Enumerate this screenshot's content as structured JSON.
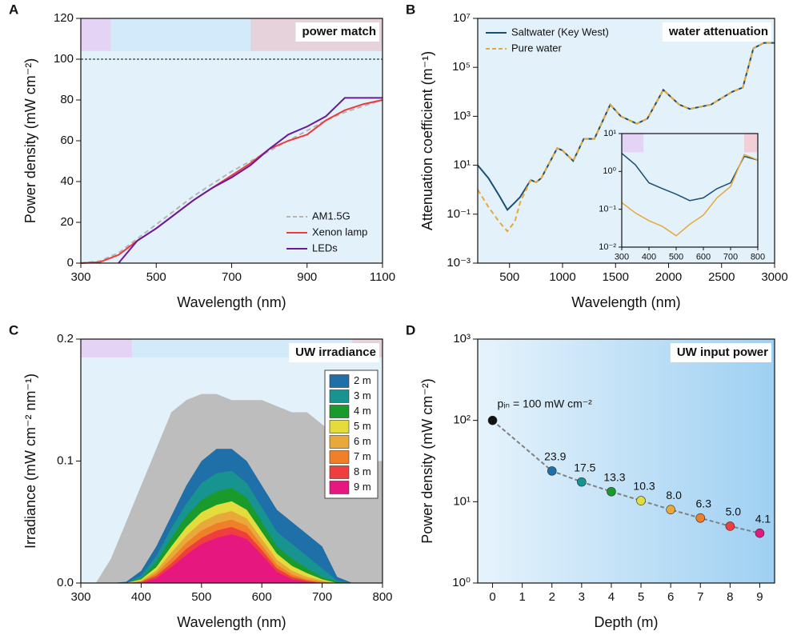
{
  "chart_data": [
    {
      "type": "line",
      "panel": "A",
      "title": "power match",
      "xlabel": "Wavelength (nm)",
      "ylabel": "Power density (mW cm⁻²)",
      "xlim": [
        300,
        1100
      ],
      "xticks": [
        300,
        500,
        700,
        900,
        1100
      ],
      "ylim": [
        0,
        120
      ],
      "yticks": [
        0,
        20,
        40,
        60,
        80,
        100,
        120
      ],
      "background": "#e3f1fb",
      "ref_line": 100,
      "legend": "lower right",
      "regions": [
        {
          "from": 300,
          "to": 380,
          "y": [
            104,
            120
          ],
          "color": "#e4d3f4"
        },
        {
          "from": 380,
          "to": 750,
          "y": [
            104,
            120
          ],
          "color": "#d3eafa"
        },
        {
          "from": 750,
          "to": 1100,
          "y": [
            104,
            120
          ],
          "color": "#e6d2da"
        }
      ],
      "x": [
        300,
        350,
        400,
        450,
        500,
        550,
        600,
        650,
        700,
        750,
        800,
        850,
        900,
        950,
        1000,
        1050,
        1100
      ],
      "series": [
        {
          "name": "AM1.5G",
          "color": "#b5b5b5",
          "dashed": true,
          "values": [
            0,
            1,
            5,
            12,
            19,
            26,
            33,
            39,
            45,
            50,
            55,
            60,
            65,
            70,
            74,
            77,
            80
          ]
        },
        {
          "name": "Xenon lamp",
          "color": "#ec3b3b",
          "values": [
            0,
            0.5,
            4,
            11,
            17,
            24,
            31,
            37,
            43,
            49,
            56,
            60,
            63,
            70,
            75,
            78,
            80
          ]
        },
        {
          "name": "LEDs",
          "color": "#6a1b9a",
          "values": [
            null,
            null,
            0,
            11,
            17,
            24,
            31,
            37,
            42,
            48,
            56,
            63,
            67,
            72,
            81,
            81,
            81
          ]
        }
      ]
    },
    {
      "type": "line",
      "panel": "B",
      "title": "water attenuation",
      "xlabel": "Wavelength (nm)",
      "ylabel": "Attenuation coefficient (m⁻¹)",
      "xlim": [
        200,
        3000
      ],
      "xticks": [
        500,
        1000,
        1500,
        2000,
        2500,
        3000
      ],
      "ylog": true,
      "ylim": [
        0.001,
        10000000
      ],
      "yticks": [
        {
          "value": 0.001,
          "label": "10⁻³"
        },
        {
          "value": 0.1,
          "label": "10⁻¹"
        },
        {
          "value": 10,
          "label": "10¹"
        },
        {
          "value": 1000,
          "label": "10³"
        },
        {
          "value": 100000,
          "label": "10⁵"
        },
        {
          "value": 10000000,
          "label": "10⁷"
        }
      ],
      "background": "#e3f1fb",
      "legend": "upper left",
      "x": [
        200,
        300,
        400,
        480,
        550,
        600,
        700,
        750,
        800,
        950,
        1000,
        1100,
        1200,
        1300,
        1450,
        1550,
        1700,
        1800,
        1950,
        2100,
        2200,
        2400,
        2600,
        2700,
        2800,
        2900,
        3000
      ],
      "series": [
        {
          "name": "Saltwater (Key West)",
          "color": "#1b4f72",
          "values": [
            10,
            3,
            0.6,
            0.15,
            0.3,
            0.5,
            2.5,
            2,
            3,
            50,
            40,
            15,
            120,
            120,
            3000,
            1000,
            500,
            800,
            12000,
            3000,
            2000,
            3000,
            10000,
            15000,
            600000,
            1000000,
            1000000
          ]
        },
        {
          "name": "Pure water",
          "color": "#e8a838",
          "dashed": true,
          "values": [
            1,
            0.2,
            0.05,
            0.02,
            0.05,
            0.3,
            2.5,
            2,
            3,
            50,
            40,
            15,
            120,
            120,
            3000,
            1000,
            500,
            800,
            12000,
            3000,
            2000,
            3000,
            10000,
            15000,
            600000,
            1000000,
            1000000
          ]
        }
      ],
      "inset": {
        "type": "line",
        "xlim": [
          300,
          800
        ],
        "xticks": [
          300,
          400,
          500,
          600,
          700,
          800
        ],
        "ylog": true,
        "ylim": [
          0.01,
          10
        ],
        "yticks": [
          {
            "value": 0.01,
            "label": "10⁻²"
          },
          {
            "value": 0.1,
            "label": "10⁻¹"
          },
          {
            "value": 1,
            "label": "10⁰"
          },
          {
            "value": 10,
            "label": "10¹"
          }
        ],
        "background": "#e3f1fb",
        "regions": [
          {
            "from": 300,
            "to": 380,
            "y": [
              3.2,
              10
            ],
            "color": "#e4d3f4"
          },
          {
            "from": 750,
            "to": 800,
            "y": [
              3.2,
              10
            ],
            "color": "#f2cfd6"
          }
        ],
        "x": [
          300,
          350,
          400,
          450,
          500,
          550,
          600,
          650,
          700,
          750,
          800
        ],
        "series": [
          {
            "color": "#1b4f72",
            "values": [
              3,
              1.5,
              0.5,
              0.35,
              0.25,
              0.17,
              0.2,
              0.35,
              0.5,
              2.5,
              2
            ]
          },
          {
            "color": "#e8a838",
            "values": [
              0.15,
              0.08,
              0.05,
              0.035,
              0.02,
              0.04,
              0.07,
              0.2,
              0.4,
              2.8,
              2
            ]
          }
        ]
      }
    },
    {
      "type": "area",
      "panel": "C",
      "title": "UW irradiance",
      "xlabel": "Wavelength (nm)",
      "ylabel": "Irradiance (mW cm⁻² nm⁻¹)",
      "xlim": [
        300,
        800
      ],
      "xticks": [
        300,
        400,
        500,
        600,
        700,
        800
      ],
      "ylim": [
        0,
        0.2
      ],
      "yticks": [
        {
          "value": 0,
          "label": "0.0"
        },
        0.1,
        0.2
      ],
      "background": "#e3f1fb",
      "legend": "upper right",
      "regions": [
        {
          "from": 300,
          "to": 385,
          "y": [
            0.185,
            0.2
          ],
          "color": "#e4d3f4"
        },
        {
          "from": 385,
          "to": 750,
          "y": [
            0.185,
            0.2
          ],
          "color": "#d3eafa"
        },
        {
          "from": 750,
          "to": 800,
          "y": [
            0.185,
            0.2
          ],
          "color": "#e6d2da"
        }
      ],
      "x": [
        300,
        325,
        350,
        375,
        400,
        425,
        450,
        475,
        500,
        525,
        550,
        575,
        600,
        625,
        650,
        675,
        700,
        725,
        750,
        775,
        800
      ],
      "series": [
        {
          "color": "#bdbdbd",
          "values": [
            0,
            0,
            0.02,
            0.05,
            0.08,
            0.11,
            0.14,
            0.15,
            0.155,
            0.155,
            0.15,
            0.15,
            0.15,
            0.145,
            0.14,
            0.14,
            0.13,
            0.12,
            0.12,
            0.1,
            0.1
          ]
        },
        {
          "name": "2 m",
          "color": "#1f6fa8",
          "values": [
            0,
            0,
            0,
            0.001,
            0.01,
            0.03,
            0.055,
            0.08,
            0.1,
            0.11,
            0.11,
            0.1,
            0.08,
            0.06,
            0.05,
            0.04,
            0.03,
            0.005,
            0,
            0,
            0
          ]
        },
        {
          "name": "3 m",
          "color": "#17948f",
          "values": [
            0,
            0,
            0,
            0,
            0.006,
            0.022,
            0.045,
            0.065,
            0.082,
            0.09,
            0.092,
            0.082,
            0.062,
            0.042,
            0.032,
            0.022,
            0.012,
            0.002,
            0,
            0,
            0
          ]
        },
        {
          "name": "4 m",
          "color": "#1a9a2a",
          "values": [
            0,
            0,
            0,
            0,
            0.004,
            0.017,
            0.037,
            0.055,
            0.068,
            0.075,
            0.078,
            0.07,
            0.05,
            0.03,
            0.02,
            0.012,
            0.005,
            0.001,
            0,
            0,
            0
          ]
        },
        {
          "name": "5 m",
          "color": "#e4dc3c",
          "values": [
            0,
            0,
            0,
            0,
            0.003,
            0.013,
            0.03,
            0.046,
            0.058,
            0.064,
            0.067,
            0.06,
            0.042,
            0.024,
            0.014,
            0.008,
            0.003,
            0,
            0,
            0,
            0
          ]
        },
        {
          "name": "6 m",
          "color": "#e9a83a",
          "values": [
            0,
            0,
            0,
            0,
            0.002,
            0.01,
            0.025,
            0.039,
            0.05,
            0.056,
            0.059,
            0.053,
            0.036,
            0.019,
            0.01,
            0.005,
            0.002,
            0,
            0,
            0,
            0
          ]
        },
        {
          "name": "7 m",
          "color": "#f07f2a",
          "values": [
            0,
            0,
            0,
            0,
            0.001,
            0.008,
            0.02,
            0.033,
            0.043,
            0.049,
            0.052,
            0.047,
            0.031,
            0.015,
            0.007,
            0.003,
            0.001,
            0,
            0,
            0,
            0
          ]
        },
        {
          "name": "8 m",
          "color": "#ef3e3e",
          "values": [
            0,
            0,
            0,
            0,
            0.001,
            0.006,
            0.016,
            0.028,
            0.037,
            0.043,
            0.046,
            0.041,
            0.027,
            0.012,
            0.005,
            0.002,
            0,
            0,
            0,
            0,
            0
          ]
        },
        {
          "name": "9 m",
          "color": "#e6177f",
          "values": [
            0,
            0,
            0,
            0,
            0,
            0.004,
            0.013,
            0.023,
            0.032,
            0.037,
            0.04,
            0.036,
            0.023,
            0.009,
            0.003,
            0.001,
            0,
            0,
            0,
            0,
            0
          ]
        }
      ]
    },
    {
      "type": "scatter",
      "panel": "D",
      "title": "UW input power",
      "xlabel": "Depth (m)",
      "ylabel": "Power density (mW cm⁻²)",
      "xlim": [
        -0.5,
        9.5
      ],
      "xticks": [
        0,
        1,
        2,
        3,
        4,
        5,
        6,
        7,
        8,
        9
      ],
      "ylog": true,
      "ylim": [
        1,
        1000
      ],
      "yticks": [
        {
          "value": 1,
          "label": "10⁰"
        },
        {
          "value": 10,
          "label": "10¹"
        },
        {
          "value": 100,
          "label": "10²"
        },
        {
          "value": 1000,
          "label": "10³"
        }
      ],
      "annotation": "pᵢₙ = 100 mW cm⁻²",
      "x": [
        0,
        2,
        3,
        4,
        5,
        6,
        7,
        8,
        9
      ],
      "values": [
        100,
        23.9,
        17.5,
        13.3,
        10.3,
        8.0,
        6.3,
        5.0,
        4.1
      ],
      "value_labels": [
        null,
        "23.9",
        "17.5",
        "13.3",
        "10.3",
        "8.0",
        "6.3",
        "5.0",
        "4.1"
      ],
      "colors": [
        "#111111",
        "#1f6fa8",
        "#17948f",
        "#1a9a2a",
        "#e4dc3c",
        "#e9a83a",
        "#f07f2a",
        "#ef3e3e",
        "#e6177f"
      ],
      "fit_color": "#808080"
    }
  ]
}
